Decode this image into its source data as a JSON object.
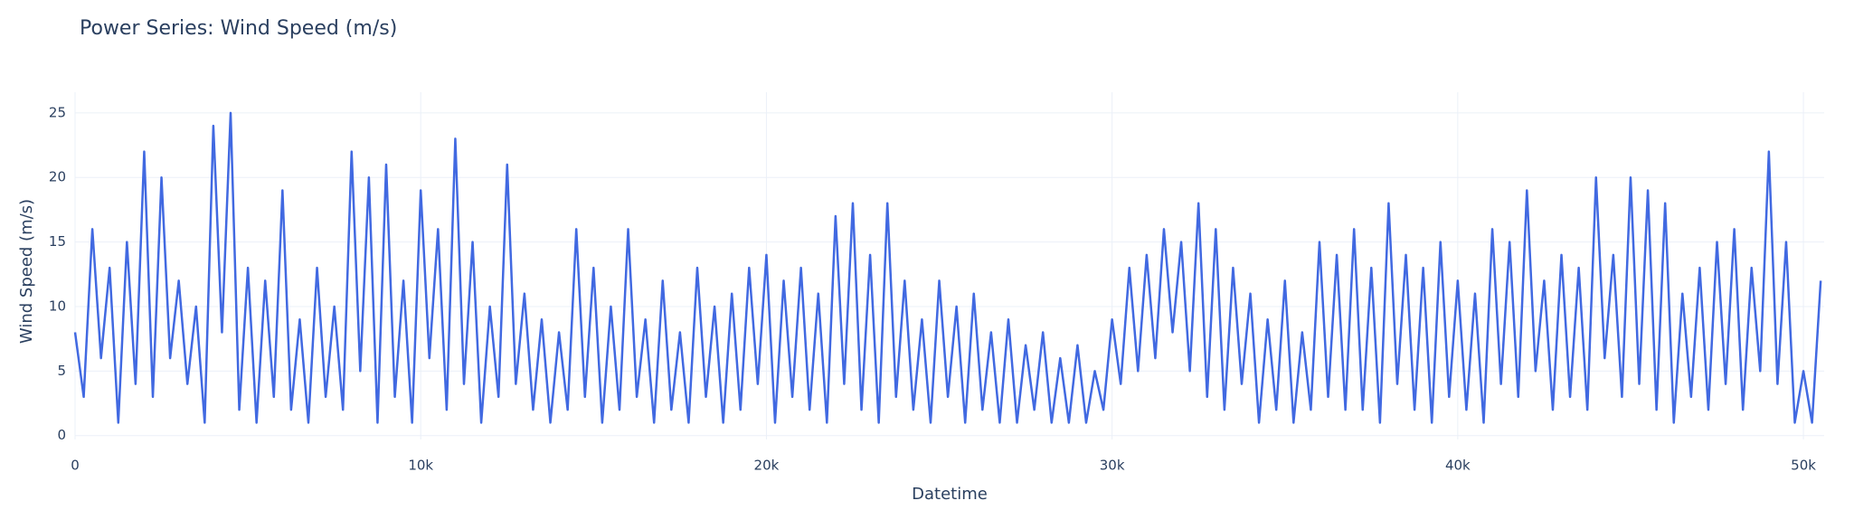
{
  "chart_data": {
    "type": "line",
    "title": "Power Series: Wind Speed (m/s)",
    "x_label": "Datetime",
    "y_label": "Wind Speed (m/s)",
    "xlim": [
      0,
      50600
    ],
    "ylim": [
      -0.3,
      26.6
    ],
    "xticks": [
      0,
      {
        "value": 10000,
        "label": "10k"
      },
      {
        "value": 20000,
        "label": "20k"
      },
      {
        "value": 30000,
        "label": "30k"
      },
      {
        "value": 40000,
        "label": "40k"
      },
      {
        "value": 50000,
        "label": "50k"
      }
    ],
    "yticks": [
      0,
      5,
      10,
      15,
      20,
      25
    ],
    "grid": true,
    "x": [
      0,
      250,
      500,
      750,
      1000,
      1250,
      1500,
      1750,
      2000,
      2250,
      2500,
      2750,
      3000,
      3250,
      3500,
      3750,
      4000,
      4250,
      4500,
      4750,
      5000,
      5250,
      5500,
      5750,
      6000,
      6250,
      6500,
      6750,
      7000,
      7250,
      7500,
      7750,
      8000,
      8250,
      8500,
      8750,
      9000,
      9250,
      9500,
      9750,
      10000,
      10250,
      10500,
      10750,
      11000,
      11250,
      11500,
      11750,
      12000,
      12250,
      12500,
      12750,
      13000,
      13250,
      13500,
      13750,
      14000,
      14250,
      14500,
      14750,
      15000,
      15250,
      15500,
      15750,
      16000,
      16250,
      16500,
      16750,
      17000,
      17250,
      17500,
      17750,
      18000,
      18250,
      18500,
      18750,
      19000,
      19250,
      19500,
      19750,
      20000,
      20250,
      20500,
      20750,
      21000,
      21250,
      21500,
      21750,
      22000,
      22250,
      22500,
      22750,
      23000,
      23250,
      23500,
      23750,
      24000,
      24250,
      24500,
      24750,
      25000,
      25250,
      25500,
      25750,
      26000,
      26250,
      26500,
      26750,
      27000,
      27250,
      27500,
      27750,
      28000,
      28250,
      28500,
      28750,
      29000,
      29250,
      29500,
      29750,
      30000,
      30250,
      30500,
      30750,
      31000,
      31250,
      31500,
      31750,
      32000,
      32250,
      32500,
      32750,
      33000,
      33250,
      33500,
      33750,
      34000,
      34250,
      34500,
      34750,
      35000,
      35250,
      35500,
      35750,
      36000,
      36250,
      36500,
      36750,
      37000,
      37250,
      37500,
      37750,
      38000,
      38250,
      38500,
      38750,
      39000,
      39250,
      39500,
      39750,
      40000,
      40250,
      40500,
      40750,
      41000,
      41250,
      41500,
      41750,
      42000,
      42250,
      42500,
      42750,
      43000,
      43250,
      43500,
      43750,
      44000,
      44250,
      44500,
      44750,
      45000,
      45250,
      45500,
      45750,
      46000,
      46250,
      46500,
      46750,
      47000,
      47250,
      47500,
      47750,
      48000,
      48250,
      48500,
      48750,
      49000,
      49250,
      49500,
      49750,
      50000,
      50250,
      50500
    ],
    "series": [
      {
        "name": "Wind Speed (m/s)",
        "color": "#4169e1",
        "values": [
          8,
          3,
          16,
          6,
          13,
          1,
          15,
          4,
          22,
          3,
          20,
          6,
          12,
          4,
          10,
          1,
          24,
          8,
          25,
          2,
          13,
          1,
          12,
          3,
          19,
          2,
          9,
          1,
          13,
          3,
          10,
          2,
          22,
          5,
          20,
          1,
          21,
          3,
          12,
          1,
          19,
          6,
          16,
          2,
          23,
          4,
          15,
          1,
          10,
          3,
          21,
          4,
          11,
          2,
          9,
          1,
          8,
          2,
          16,
          3,
          13,
          1,
          10,
          2,
          16,
          3,
          9,
          1,
          12,
          2,
          8,
          1,
          13,
          3,
          10,
          1,
          11,
          2,
          13,
          4,
          14,
          1,
          12,
          3,
          13,
          2,
          11,
          1,
          17,
          4,
          18,
          2,
          14,
          1,
          18,
          3,
          12,
          2,
          9,
          1,
          12,
          3,
          10,
          1,
          11,
          2,
          8,
          1,
          9,
          1,
          7,
          2,
          8,
          1,
          6,
          1,
          7,
          1,
          5,
          2,
          9,
          4,
          13,
          5,
          14,
          6,
          16,
          8,
          15,
          5,
          18,
          3,
          16,
          2,
          13,
          4,
          11,
          1,
          9,
          2,
          12,
          1,
          8,
          2,
          15,
          3,
          14,
          2,
          16,
          2,
          13,
          1,
          18,
          4,
          14,
          2,
          13,
          1,
          15,
          3,
          12,
          2,
          11,
          1,
          16,
          4,
          15,
          3,
          19,
          5,
          12,
          2,
          14,
          3,
          13,
          2,
          20,
          6,
          14,
          3,
          20,
          4,
          19,
          2,
          18,
          1,
          11,
          3,
          13,
          2,
          15,
          4,
          16,
          2,
          13,
          5,
          22,
          4,
          15,
          1,
          5,
          1,
          12
        ]
      }
    ]
  }
}
